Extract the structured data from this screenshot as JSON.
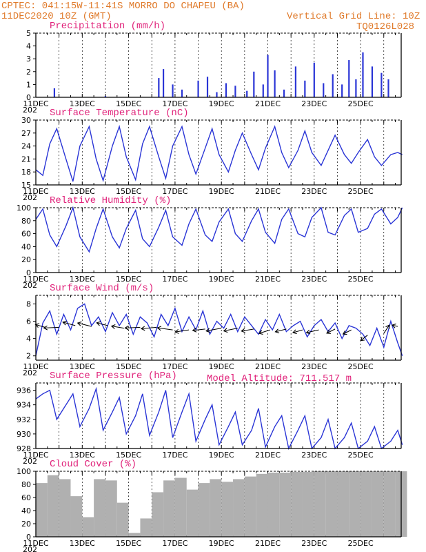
{
  "header": {
    "station": "CPTEC:  041:15W-11:41S  MORRO DO CHAPEU (BA)",
    "run": "11DEC2020 10Z (GMT)",
    "grid_note": "Vertical Grid Line: 10Z",
    "code": "TQ0126L028",
    "altitude": "Model Altitude: 711.517 m"
  },
  "colors": {
    "header": "#e07b2c",
    "title": "#e0227a",
    "series": "#2a35d6",
    "cloud": "#b0b0b0",
    "precip": "#2a35d6",
    "wind_arrows": "#000000"
  },
  "x_axis": {
    "day_labels": [
      "11DEC",
      "13DEC",
      "15DEC",
      "17DEC",
      "19DEC",
      "21DEC",
      "23DEC",
      "25DEC"
    ],
    "day_index": [
      0,
      2,
      4,
      6,
      8,
      10,
      12,
      14
    ],
    "year_fragment": "202"
  },
  "chart_data": [
    {
      "id": "precip",
      "type": "bar",
      "title": "Precipitation (mm/h)",
      "ylim": [
        0,
        5
      ],
      "yticks": [
        "0",
        "1",
        "2",
        "3",
        "4",
        "5"
      ],
      "x_unit": "days since 11DEC 10Z",
      "x": [
        0.8,
        3.0,
        5.3,
        5.5,
        5.9,
        6.3,
        7.0,
        7.4,
        7.8,
        8.2,
        8.6,
        9.1,
        9.4,
        9.8,
        10.0,
        10.3,
        10.7,
        11.2,
        11.6,
        12.0,
        12.4,
        12.8,
        13.2,
        13.5,
        13.8,
        14.1,
        14.5,
        14.9,
        15.2
      ],
      "values": [
        0.7,
        0.1,
        1.5,
        2.2,
        1.0,
        0.6,
        1.3,
        1.6,
        0.4,
        1.1,
        0.9,
        0.5,
        2.0,
        1.0,
        3.3,
        2.1,
        0.6,
        2.4,
        1.3,
        2.7,
        1.1,
        1.8,
        1.0,
        2.9,
        1.4,
        3.5,
        2.4,
        1.9,
        1.4
      ]
    },
    {
      "id": "temp",
      "type": "line",
      "title": "Surface Temperature (nC)",
      "ylim": [
        15,
        30
      ],
      "yticks": [
        "15",
        "18",
        "21",
        "24",
        "27",
        "30"
      ],
      "x": [
        0.0,
        0.3,
        0.6,
        0.9,
        1.3,
        1.6,
        1.9,
        2.3,
        2.6,
        2.9,
        3.3,
        3.6,
        3.9,
        4.3,
        4.6,
        4.9,
        5.3,
        5.6,
        5.9,
        6.3,
        6.6,
        6.9,
        7.3,
        7.6,
        7.9,
        8.3,
        8.6,
        8.9,
        9.3,
        9.6,
        9.9,
        10.3,
        10.6,
        10.9,
        11.3,
        11.6,
        11.9,
        12.3,
        12.6,
        12.9,
        13.3,
        13.6,
        13.9,
        14.3,
        14.6,
        14.9,
        15.3,
        15.6,
        15.8
      ],
      "values": [
        18.5,
        17.2,
        24.5,
        28.0,
        21.0,
        15.8,
        24.0,
        28.5,
        21.0,
        16.0,
        24.0,
        28.5,
        21.5,
        16.2,
        24.5,
        28.5,
        21.5,
        16.5,
        24.0,
        28.5,
        22.0,
        17.5,
        23.5,
        28.0,
        22.0,
        18.0,
        23.0,
        27.0,
        22.0,
        18.5,
        23.5,
        28.5,
        22.5,
        19.0,
        23.0,
        27.5,
        22.5,
        19.5,
        23.0,
        26.5,
        22.0,
        20.0,
        22.5,
        25.5,
        21.5,
        19.5,
        22.0,
        22.5,
        22.0
      ]
    },
    {
      "id": "rh",
      "type": "line",
      "title": "Relative Humidity (%)",
      "ylim": [
        0,
        100
      ],
      "yticks": [
        "0",
        "20",
        "40",
        "60",
        "80",
        "100"
      ],
      "x": [
        0.0,
        0.3,
        0.6,
        0.9,
        1.3,
        1.6,
        1.9,
        2.3,
        2.6,
        2.9,
        3.3,
        3.6,
        3.9,
        4.3,
        4.6,
        4.9,
        5.3,
        5.6,
        5.9,
        6.3,
        6.6,
        6.9,
        7.3,
        7.6,
        7.9,
        8.3,
        8.6,
        8.9,
        9.3,
        9.6,
        9.9,
        10.3,
        10.6,
        10.9,
        11.3,
        11.6,
        11.9,
        12.3,
        12.6,
        12.9,
        13.3,
        13.6,
        13.9,
        14.3,
        14.6,
        14.9,
        15.3,
        15.6,
        15.8
      ],
      "values": [
        82,
        98,
        58,
        40,
        72,
        100,
        55,
        32,
        68,
        98,
        55,
        38,
        68,
        96,
        52,
        40,
        70,
        96,
        55,
        42,
        75,
        98,
        58,
        48,
        78,
        98,
        60,
        48,
        80,
        98,
        62,
        45,
        82,
        98,
        60,
        55,
        85,
        100,
        62,
        58,
        88,
        98,
        62,
        68,
        90,
        98,
        75,
        85,
        100
      ]
    },
    {
      "id": "wind",
      "type": "line",
      "title": "Surface Wind (m/s)",
      "ylim": [
        1.5,
        9
      ],
      "yticks": [
        "2",
        "4",
        "6",
        "8"
      ],
      "x": [
        0.0,
        0.3,
        0.6,
        0.9,
        1.2,
        1.5,
        1.8,
        2.1,
        2.4,
        2.7,
        3.0,
        3.3,
        3.6,
        3.9,
        4.2,
        4.5,
        4.8,
        5.1,
        5.4,
        5.7,
        6.0,
        6.3,
        6.6,
        6.9,
        7.2,
        7.5,
        7.8,
        8.1,
        8.4,
        8.7,
        9.0,
        9.3,
        9.6,
        9.9,
        10.2,
        10.5,
        10.8,
        11.1,
        11.4,
        11.7,
        12.0,
        12.3,
        12.6,
        12.9,
        13.2,
        13.5,
        13.8,
        14.1,
        14.4,
        14.7,
        15.0,
        15.3,
        15.6,
        15.8
      ],
      "values": [
        2.0,
        5.8,
        7.2,
        4.5,
        6.8,
        5.0,
        7.5,
        8.0,
        5.5,
        6.5,
        4.8,
        7.0,
        5.5,
        6.8,
        4.5,
        6.5,
        5.8,
        4.2,
        6.8,
        5.5,
        7.5,
        4.8,
        6.5,
        5.0,
        7.2,
        4.5,
        6.0,
        5.2,
        6.8,
        4.8,
        6.5,
        5.5,
        4.5,
        6.2,
        5.0,
        6.8,
        4.8,
        5.5,
        6.0,
        4.2,
        5.5,
        6.2,
        4.8,
        5.8,
        4.0,
        5.5,
        5.2,
        4.5,
        3.2,
        5.2,
        3.0,
        6.0,
        3.5,
        2.0
      ],
      "arrows_x": [
        0.4,
        1.0,
        1.7,
        2.4,
        3.1,
        3.8,
        4.5,
        5.2,
        5.9,
        6.6,
        7.3,
        8.0,
        8.7,
        9.4,
        10.1,
        10.8,
        11.5,
        12.2,
        12.9,
        13.6,
        14.3,
        15.0,
        15.6
      ],
      "arrows_y": [
        5.3,
        5.3,
        5.5,
        5.4,
        5.5,
        5.2,
        5.3,
        5.3,
        5.0,
        5.0,
        5.1,
        5.2,
        5.2,
        5.1,
        5.0,
        5.1,
        5.0,
        5.0,
        5.1,
        5.0,
        4.4,
        4.6,
        5.4
      ],
      "arrows_dir": [
        [
          -14,
          -4
        ],
        [
          -22,
          1
        ],
        [
          -18,
          -5
        ],
        [
          -20,
          -5
        ],
        [
          -16,
          -4
        ],
        [
          -18,
          -3
        ],
        [
          -22,
          1
        ],
        [
          -22,
          2
        ],
        [
          -22,
          -3
        ],
        [
          -20,
          3
        ],
        [
          -18,
          2
        ],
        [
          -22,
          4
        ],
        [
          -20,
          4
        ],
        [
          -18,
          3
        ],
        [
          -16,
          5
        ],
        [
          -16,
          4
        ],
        [
          -14,
          4
        ],
        [
          -18,
          4
        ],
        [
          -12,
          6
        ],
        [
          -12,
          6
        ],
        [
          -10,
          8
        ],
        [
          8,
          -12
        ],
        [
          -8,
          -2
        ]
      ]
    },
    {
      "id": "pressure",
      "type": "line",
      "title": "Surface Pressure (hPa)",
      "ylim": [
        928,
        937
      ],
      "yticks": [
        "928",
        "930",
        "932",
        "934",
        "936"
      ],
      "x": [
        0.0,
        0.3,
        0.6,
        0.9,
        1.3,
        1.6,
        1.9,
        2.3,
        2.6,
        2.9,
        3.3,
        3.6,
        3.9,
        4.3,
        4.6,
        4.9,
        5.3,
        5.6,
        5.9,
        6.3,
        6.6,
        6.9,
        7.3,
        7.6,
        7.9,
        8.3,
        8.6,
        8.9,
        9.3,
        9.6,
        9.9,
        10.3,
        10.6,
        10.9,
        11.3,
        11.6,
        11.9,
        12.3,
        12.6,
        12.9,
        13.3,
        13.6,
        13.9,
        14.3,
        14.6,
        14.9,
        15.3,
        15.6,
        15.8
      ],
      "values": [
        934.8,
        935.5,
        936.0,
        932.0,
        934.0,
        935.5,
        931.0,
        933.5,
        936.2,
        930.5,
        933.0,
        935.0,
        930.0,
        932.5,
        935.5,
        929.8,
        933.0,
        936.0,
        929.5,
        933.0,
        935.5,
        929.0,
        932.0,
        934.0,
        928.5,
        931.0,
        933.0,
        928.5,
        930.5,
        933.5,
        928.2,
        931.0,
        932.5,
        928.0,
        930.5,
        932.5,
        928.0,
        929.5,
        932.0,
        928.0,
        929.5,
        931.5,
        928.0,
        929.0,
        931.0,
        928.0,
        929.0,
        930.5,
        928.5
      ]
    },
    {
      "id": "cloud",
      "type": "bar",
      "title": "Cloud Cover (%)",
      "ylim": [
        0,
        100
      ],
      "yticks": [
        "0",
        "20",
        "40",
        "60",
        "80",
        "100"
      ],
      "x_unit": "days since 11DEC 10Z",
      "x": [
        0.0,
        0.5,
        1.0,
        1.5,
        2.0,
        2.5,
        3.0,
        3.5,
        4.0,
        4.5,
        5.0,
        5.5,
        6.0,
        6.5,
        7.0,
        7.5,
        8.0,
        8.5,
        9.0,
        9.5,
        10.0,
        10.5,
        11.0,
        11.5,
        12.0,
        12.5,
        13.0,
        13.5,
        14.0,
        14.5,
        15.0,
        15.5
      ],
      "values": [
        82,
        94,
        88,
        62,
        30,
        88,
        86,
        52,
        6,
        28,
        68,
        86,
        90,
        72,
        82,
        88,
        84,
        88,
        92,
        96,
        98,
        98,
        99,
        99,
        100,
        100,
        100,
        100,
        100,
        100,
        100,
        100
      ]
    }
  ]
}
